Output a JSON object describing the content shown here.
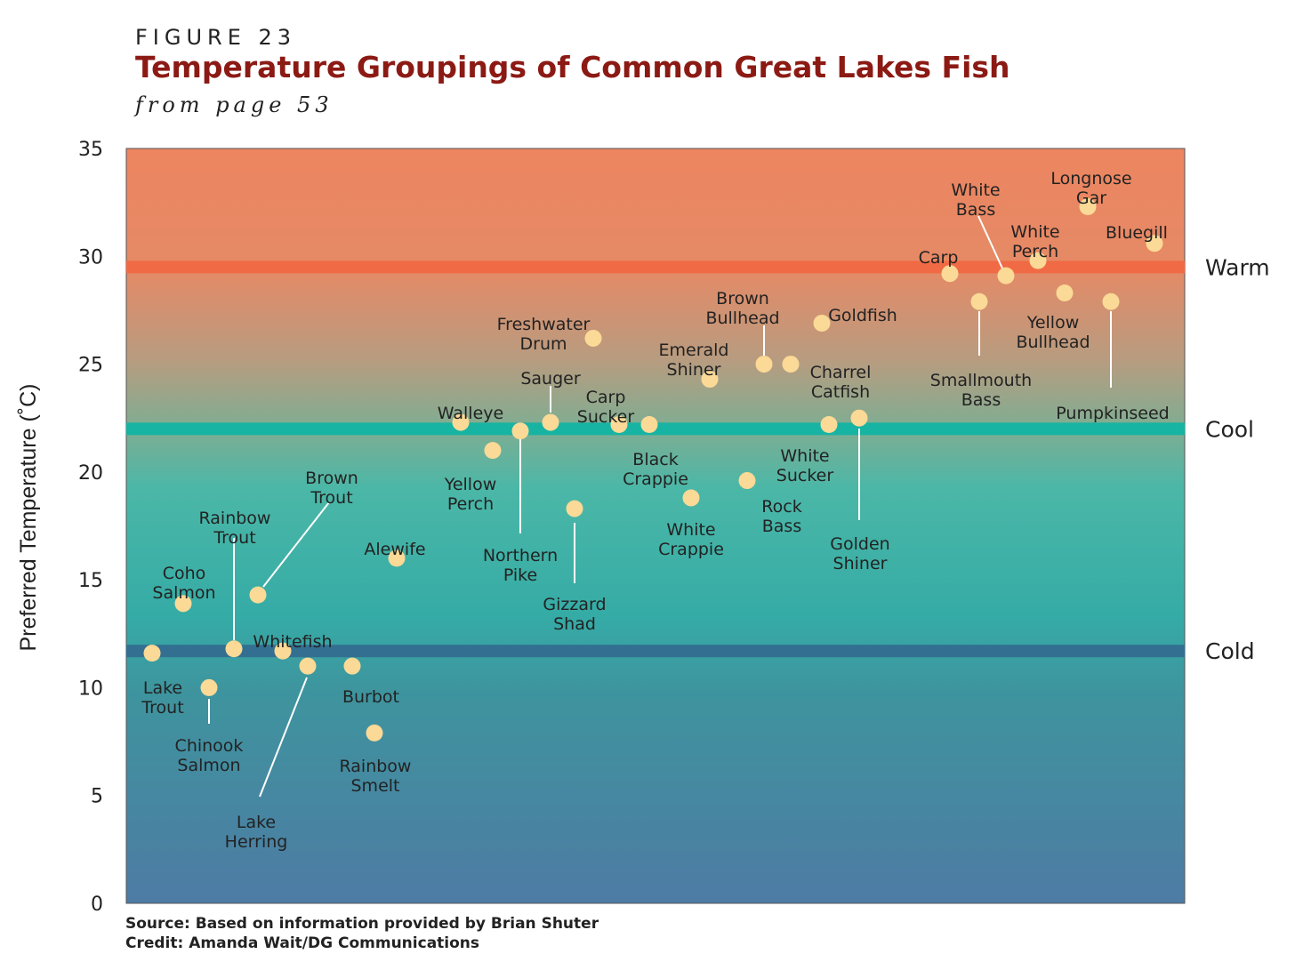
{
  "figure_label": "FIGURE 23",
  "chart_data": {
    "type": "scatter",
    "title": "Temperature Groupings of Common Great Lakes Fish",
    "subtitle": "from page 53",
    "ylabel": "Preferred Temperature (˚C)",
    "xlabel": "",
    "ylim": [
      0,
      35
    ],
    "yticks": [
      "0",
      "5",
      "10",
      "15",
      "20",
      "25",
      "30",
      "35"
    ],
    "grid": false,
    "bands": [
      {
        "name": "Warm",
        "value": 29.5,
        "color": "#f06b45"
      },
      {
        "name": "Cool",
        "value": 22.0,
        "color": "#17b3a3"
      },
      {
        "name": "Cold",
        "value": 11.7,
        "color": "#336f91"
      }
    ],
    "points": [
      {
        "label": "Lake Trout",
        "y": 11.6
      },
      {
        "label": "Coho Salmon",
        "y": 13.9
      },
      {
        "label": "Chinook Salmon",
        "y": 10.0
      },
      {
        "label": "Rainbow Trout",
        "y": 11.8
      },
      {
        "label": "Brown Trout",
        "y": 14.3
      },
      {
        "label": "Whitefish",
        "y": 11.7
      },
      {
        "label": "Lake Herring",
        "y": 11.0
      },
      {
        "label": "Burbot",
        "y": 11.0
      },
      {
        "label": "Rainbow Smelt",
        "y": 7.9
      },
      {
        "label": "Alewife",
        "y": 16.0
      },
      {
        "label": "Walleye",
        "y": 22.3
      },
      {
        "label": "Yellow Perch",
        "y": 21.0
      },
      {
        "label": "Northern Pike",
        "y": 21.9
      },
      {
        "label": "Sauger",
        "y": 22.3
      },
      {
        "label": "Freshwater Drum",
        "y": 26.2
      },
      {
        "label": "Gizzard Shad",
        "y": 18.3
      },
      {
        "label": "Carp Sucker",
        "y": 22.2
      },
      {
        "label": "Black Crappie",
        "y": 22.2
      },
      {
        "label": "White Crappie",
        "y": 18.8
      },
      {
        "label": "Emerald Shiner",
        "y": 24.3
      },
      {
        "label": "Rock Bass",
        "y": 19.6
      },
      {
        "label": "Brown Bullhead",
        "y": 25.0
      },
      {
        "label": "Charrel Catfish",
        "y": 25.0
      },
      {
        "label": "Goldfish",
        "y": 26.9
      },
      {
        "label": "White Sucker",
        "y": 22.2
      },
      {
        "label": "Golden Shiner",
        "y": 22.5
      },
      {
        "label": "Carp",
        "y": 29.2
      },
      {
        "label": "Smallmouth Bass",
        "y": 27.9
      },
      {
        "label": "White Bass",
        "y": 29.1
      },
      {
        "label": "White Perch",
        "y": 29.8
      },
      {
        "label": "Yellow Bullhead",
        "y": 28.3
      },
      {
        "label": "Longnose Gar",
        "y": 32.3
      },
      {
        "label": "Pumpkinseed",
        "y": 27.9
      },
      {
        "label": "Bluegill",
        "y": 30.6
      }
    ],
    "source": "Source: Based on information provided by Brian Shuter",
    "credit": "Credit: Amanda Wait/DG Communications"
  }
}
